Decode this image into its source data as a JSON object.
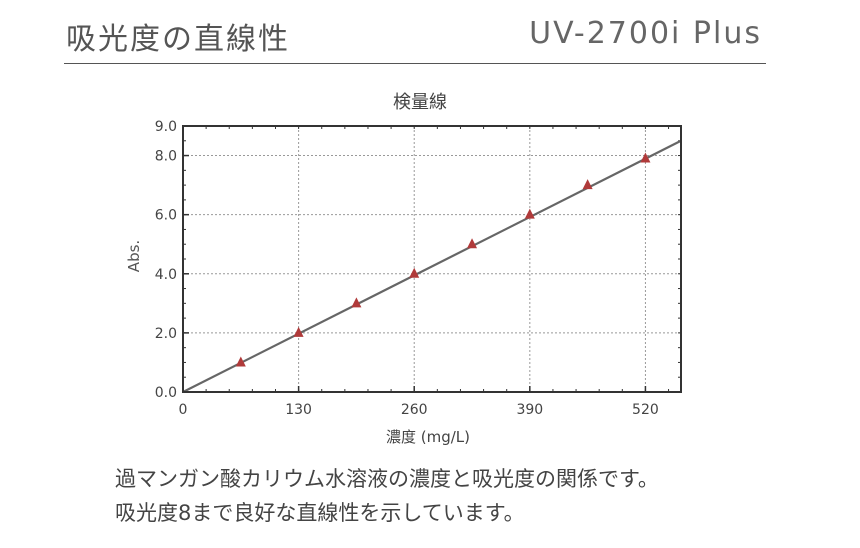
{
  "header": {
    "title": "吸光度の直線性",
    "model": "UV-2700i Plus"
  },
  "chart_data": {
    "type": "scatter",
    "title": "検量線",
    "xlabel": "濃度 (mg/L)",
    "ylabel": "Abs.",
    "xlim": [
      0,
      560
    ],
    "ylim": [
      0,
      9.0
    ],
    "x_ticks": [
      "0",
      "130",
      "260",
      "390",
      "520"
    ],
    "x_tick_values": [
      0,
      130,
      260,
      390,
      520
    ],
    "y_ticks": [
      "0.0",
      "2.0",
      "4.0",
      "6.0",
      "8.0",
      "9.0"
    ],
    "y_tick_values": [
      0,
      2,
      4,
      6,
      8,
      9
    ],
    "grid": true,
    "series": [
      {
        "marker": "triangle",
        "x": [
          65,
          130,
          195,
          260,
          325,
          390,
          455,
          520
        ],
        "y": [
          1.0,
          2.0,
          3.0,
          4.0,
          5.0,
          6.0,
          7.0,
          7.9
        ]
      }
    ],
    "fit_line": {
      "x": [
        0,
        560
      ],
      "y": [
        0,
        8.5
      ]
    },
    "colors": {
      "marker": "#b03a3a",
      "line": "#666666",
      "grid": "#999999",
      "frame": "#333333"
    }
  },
  "caption": {
    "line1": "過マンガン酸カリウム水溶液の濃度と吸光度の関係です。",
    "line2": "吸光度8まで良好な直線性を示しています。"
  }
}
